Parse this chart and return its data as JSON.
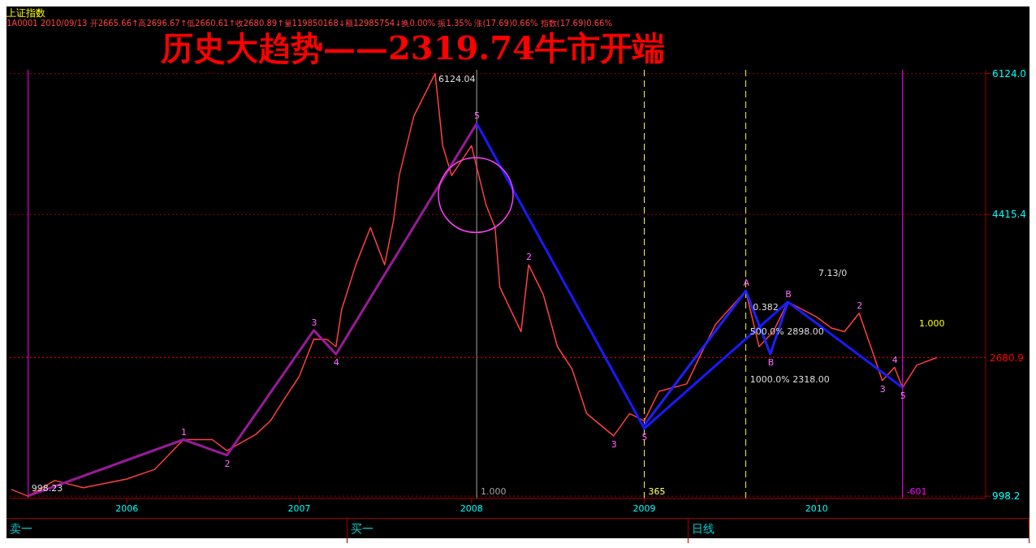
{
  "chart_data": {
    "type": "line",
    "title": "历史大趋势——2319.74牛市开端",
    "subtitle": "上证指数",
    "xlim": [
      "2005-04-28",
      "2010-12-25"
    ],
    "xticks": [
      "2006",
      "2007",
      "2008",
      "2009",
      "2010"
    ],
    "ylim": [
      970,
      6170
    ],
    "yticks": [
      998.2,
      4415.4,
      {
        "value": 6124,
        "label": "6124.0"
      }
    ],
    "grid": "y",
    "legend": false,
    "series": [
      {
        "color": "#ff4040",
        "x": [
          "2005-05-01",
          "2005-06-06",
          "2005-08-01",
          "2005-10-01",
          "2006-01-01",
          "2006-03-01",
          "2006-05-01",
          "2006-07-01",
          "2006-08-01",
          "2006-10-01",
          "2006-11-01",
          "2006-12-01",
          "2007-01-01",
          "2007-02-01",
          "2007-03-01",
          "2007-03-20",
          "2007-04-01",
          "2007-05-01",
          "2007-06-01",
          "2007-07-01",
          "2007-07-20",
          "2007-08-01",
          "2007-09-01",
          "2007-10-16",
          "2007-11-01",
          "2007-11-20",
          "2008-01-01",
          "2008-02-01",
          "2008-02-20",
          "2008-03-01",
          "2008-04-15",
          "2008-05-01",
          "2008-06-01",
          "2008-07-01",
          "2008-08-01",
          "2008-09-01",
          "2008-10-28",
          "2008-12-01",
          "2009-01-01",
          "2009-02-01",
          "2009-04-01",
          "2009-05-01",
          "2009-06-01",
          "2009-08-04",
          "2009-09-01",
          "2009-10-01",
          "2009-11-01",
          "2010-01-01",
          "2010-02-01",
          "2010-03-01",
          "2010-04-01",
          "2010-05-01",
          "2010-05-20",
          "2010-06-15",
          "2010-07-02",
          "2010-08-01",
          "2010-09-13"
        ],
        "values": [
          1080,
          998.23,
          1188,
          1100,
          1206,
          1323,
          1684,
          1684,
          1549,
          1747,
          1910,
          2180,
          2450,
          2902,
          2900,
          2812,
          3263,
          3805,
          4256,
          3805,
          4347,
          4888,
          5610,
          6124.04,
          5250,
          4888,
          5250,
          4527,
          4256,
          3534,
          2993,
          3805,
          3444,
          2812,
          2541,
          2000,
          1729,
          2000,
          1910,
          2270,
          2360,
          2722,
          3083,
          3489,
          2812,
          2993,
          3354,
          3173,
          3038,
          2993,
          3218,
          2722,
          2400,
          2560,
          2315,
          2586,
          2680.89
        ]
      },
      {
        "color": "#9a1a9a",
        "x": [
          "2005-06-06",
          "2006-05-01",
          "2006-08-01",
          "2007-02-01",
          "2007-03-20",
          "2008-01-12"
        ],
        "values": [
          1000,
          1684,
          1495,
          3010,
          2720,
          5520
        ]
      },
      {
        "color": "#1a1aff",
        "x": [
          "2008-01-12",
          "2009-01-01",
          "2009-11-01",
          "2010-07-02"
        ],
        "values": [
          5520,
          1819,
          3354,
          2316
        ]
      },
      {
        "color": "#2020ff",
        "x": [
          "2009-01-01",
          "2009-08-04",
          "2009-09-25",
          "2009-11-01"
        ],
        "values": [
          1860,
          3489,
          2722,
          3354
        ]
      }
    ],
    "ref_lines": [
      {
        "axis": "x",
        "value": "2005-06-06",
        "color": "#ff00ff"
      },
      {
        "axis": "x",
        "value": "2010-07-02",
        "label": "-601",
        "color": "#ff00ff"
      },
      {
        "axis": "x",
        "value": "2008-01-12",
        "label": "1.000",
        "color": "#a0a0a0"
      },
      {
        "axis": "x",
        "value": "2009-01-01",
        "label": "365",
        "color": "#ffff66",
        "line_style": "dashed"
      },
      {
        "axis": "x",
        "value": "2009-08-04",
        "color": "#ffff00",
        "line_style": "dashed"
      },
      {
        "axis": "y",
        "value": 2680.89,
        "label": "2680.9",
        "color": "#ff0000",
        "line_style": "dotted"
      }
    ],
    "annotations": [
      "1A0001 2010/09/13 开2665.66↑高2696.67↑低2660.61↑收2680.89↑量119850168↓额12985754↓换0.00% 振1.35% 涨(17.69)0.66% 指数(17.69)0.66%",
      "卖一",
      "买一",
      "日线",
      "1.000",
      "7.13/0",
      {
        "text": "6124.04",
        "x": "2007-10-16",
        "y": 6124.04
      },
      {
        "text": "998.23",
        "x": "2005-06-06",
        "y": 998.23
      },
      {
        "text": "0.382",
        "x": "2009-08-12",
        "y": 3200
      },
      {
        "text": "500.0% 2898.00",
        "x": "2009-08-06",
        "y": 2898
      },
      {
        "text": "1000.0% 2318.00",
        "x": "2009-08-06",
        "y": 2318
      },
      {
        "text": "1",
        "x": "2006-05-01",
        "y": 1684
      },
      {
        "text": "2",
        "x": "2006-08-01",
        "y": 1495
      },
      {
        "text": "3",
        "x": "2007-02-01",
        "y": 3010
      },
      {
        "text": "4",
        "x": "2007-03-20",
        "y": 2720
      },
      {
        "text": "5",
        "x": "2008-01-12",
        "y": 5520
      },
      {
        "text": "2",
        "x": "2008-05-01",
        "y": 3805
      },
      {
        "text": "3",
        "x": "2008-10-28",
        "y": 1729
      },
      {
        "text": "5",
        "x": "2009-01-01",
        "y": 1819
      },
      {
        "text": "A",
        "x": "2009-08-04",
        "y": 3489
      },
      {
        "text": "B",
        "x": "2009-09-25",
        "y": 2722
      },
      {
        "text": "B",
        "x": "2009-11-01",
        "y": 3354
      },
      {
        "text": "2",
        "x": "2010-04-01",
        "y": 3218
      },
      {
        "text": "3",
        "x": "2010-05-20",
        "y": 2400
      },
      {
        "text": "4",
        "x": "2010-06-15",
        "y": 2560
      },
      {
        "text": "5",
        "x": "2010-07-02",
        "y": 2316
      }
    ]
  }
}
